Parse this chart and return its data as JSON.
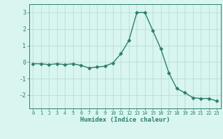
{
  "x": [
    0,
    1,
    2,
    3,
    4,
    5,
    6,
    7,
    8,
    9,
    10,
    11,
    12,
    13,
    14,
    15,
    16,
    17,
    18,
    19,
    20,
    21,
    22,
    23
  ],
  "y": [
    -0.1,
    -0.1,
    -0.15,
    -0.1,
    -0.15,
    -0.1,
    -0.2,
    -0.35,
    -0.3,
    -0.25,
    -0.05,
    0.5,
    1.3,
    3.0,
    3.0,
    1.9,
    0.8,
    -0.65,
    -1.6,
    -1.85,
    -2.15,
    -2.2,
    -2.2,
    -2.35
  ],
  "xlabel": "Humidex (Indice chaleur)",
  "line_color": "#2d7d6e",
  "marker": "D",
  "marker_size": 2.5,
  "bg_color": "#d8f5f0",
  "grid_color": "#b8ddd8",
  "axis_color": "#2d7d6e",
  "tick_color": "#2d7d6e",
  "xlim": [
    -0.5,
    23.5
  ],
  "ylim": [
    -2.8,
    3.5
  ],
  "yticks": [
    -2,
    -1,
    0,
    1,
    2,
    3
  ],
  "xticks": [
    0,
    1,
    2,
    3,
    4,
    5,
    6,
    7,
    8,
    9,
    10,
    11,
    12,
    13,
    14,
    15,
    16,
    17,
    18,
    19,
    20,
    21,
    22,
    23
  ]
}
